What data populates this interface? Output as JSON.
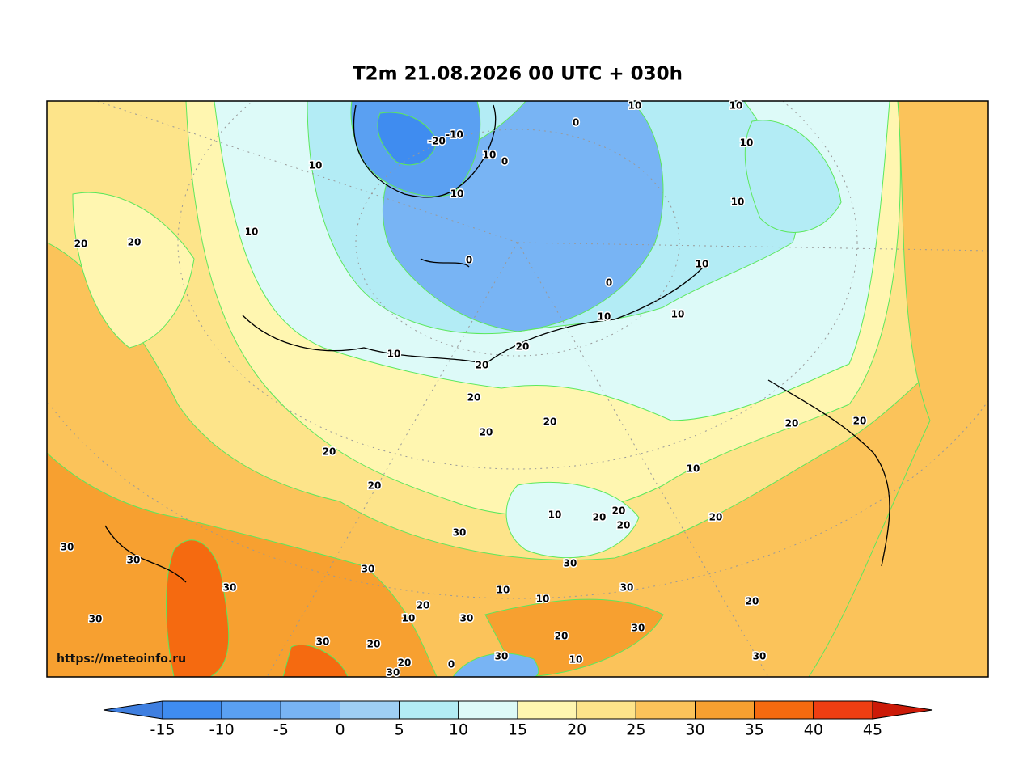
{
  "title": "T2m 21.08.2026 00 UTC + 030h",
  "watermark": "https://meteoinfo.ru",
  "colorbar": {
    "ticks": [
      -15,
      -10,
      -5,
      0,
      5,
      10,
      15,
      20,
      25,
      30,
      35,
      40,
      45
    ],
    "colors": [
      "#3f7fe0",
      "#3f8cf0",
      "#5aa0f2",
      "#78b4f4",
      "#9fcff4",
      "#b3ecf5",
      "#ddfaf8",
      "#fff6b0",
      "#fde48a",
      "#fbc35a",
      "#f7a030",
      "#f56a10",
      "#ef3e12",
      "#cc1a08"
    ]
  },
  "contour_labels": [
    10,
    10,
    10,
    -10,
    -20,
    0,
    10,
    0,
    10,
    20,
    20,
    10,
    0,
    0,
    10,
    10,
    10,
    10,
    10,
    20,
    20,
    20,
    10,
    20,
    20,
    20,
    20,
    20,
    20,
    10,
    10,
    20,
    20,
    20,
    20,
    30,
    30,
    30,
    30,
    30,
    30,
    30,
    30,
    20,
    10,
    10,
    30,
    20,
    10,
    30,
    20,
    30,
    20,
    10,
    0,
    30,
    30,
    30,
    20
  ]
}
